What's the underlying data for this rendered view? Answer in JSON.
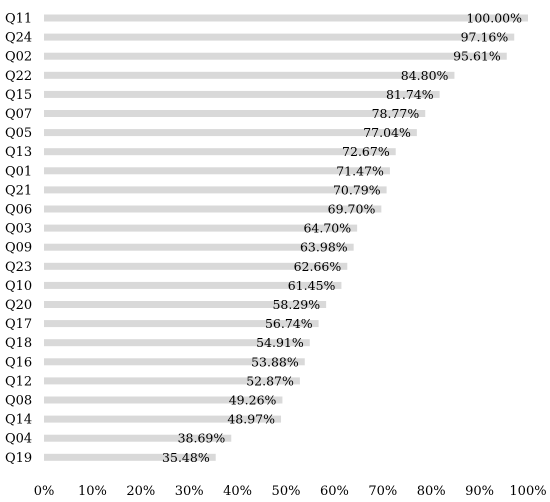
{
  "chart_data": {
    "type": "bar",
    "orientation": "horizontal",
    "categories": [
      "Q11",
      "Q24",
      "Q02",
      "Q22",
      "Q15",
      "Q07",
      "Q05",
      "Q13",
      "Q01",
      "Q21",
      "Q06",
      "Q03",
      "Q09",
      "Q23",
      "Q10",
      "Q20",
      "Q17",
      "Q18",
      "Q16",
      "Q12",
      "Q08",
      "Q14",
      "Q04",
      "Q19"
    ],
    "values": [
      100.0,
      97.16,
      95.61,
      84.8,
      81.74,
      78.77,
      77.04,
      72.67,
      71.47,
      70.79,
      69.7,
      64.7,
      63.98,
      62.66,
      61.45,
      58.29,
      56.74,
      54.91,
      53.88,
      52.87,
      49.26,
      48.97,
      38.69,
      35.48
    ],
    "data_labels": [
      "100.00%",
      "97.16%",
      "95.61%",
      "84.80%",
      "81.74%",
      "78.77%",
      "77.04%",
      "72.67%",
      "71.47%",
      "70.79%",
      "69.70%",
      "64.70%",
      "63.98%",
      "62.66%",
      "61.45%",
      "58.29%",
      "56.74%",
      "54.91%",
      "53.88%",
      "52.87%",
      "49.26%",
      "48.97%",
      "38.69%",
      "35.48%"
    ],
    "x_ticks": [
      0,
      10,
      20,
      30,
      40,
      50,
      60,
      70,
      80,
      90,
      100
    ],
    "x_tick_labels": [
      "0%",
      "10%",
      "20%",
      "30%",
      "40%",
      "50%",
      "60%",
      "70%",
      "80%",
      "90%",
      "100%"
    ],
    "xlim": [
      0,
      100
    ],
    "title": "",
    "xlabel": "",
    "ylabel": "",
    "bar_color": "#d9d9d9",
    "grid": false,
    "legend": false
  }
}
